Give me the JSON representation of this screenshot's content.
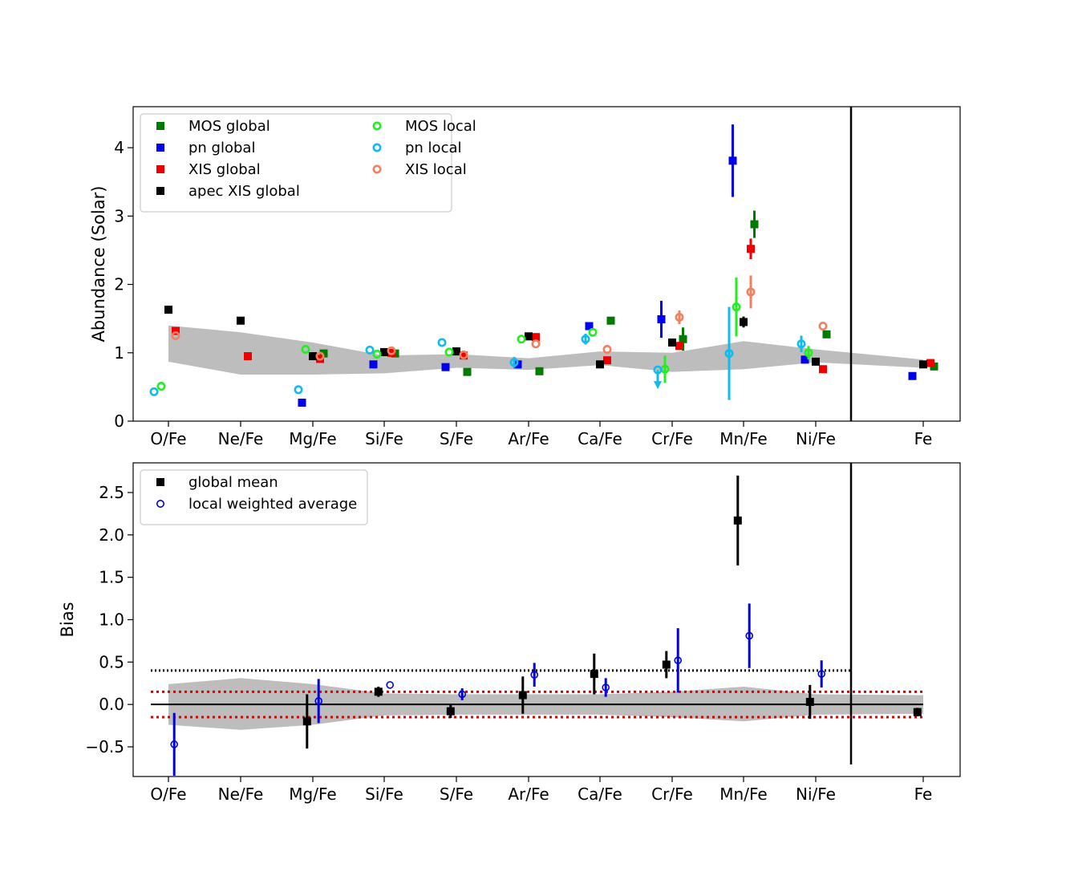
{
  "chart_data": [
    {
      "type": "scatter",
      "ylabel": "Abundance (Solar)",
      "ylim": [
        0,
        4.6
      ],
      "yticks": [
        0,
        1,
        2,
        3,
        4
      ],
      "categories": [
        "O/Fe",
        "Ne/Fe",
        "Mg/Fe",
        "Si/Fe",
        "S/Fe",
        "Ar/Fe",
        "Ca/Fe",
        "Cr/Fe",
        "Mn/Fe",
        "Ni/Fe",
        "Fe"
      ],
      "band": {
        "x": [
          0,
          1,
          2,
          3,
          4,
          5,
          6,
          7,
          8,
          9,
          10,
          10.5
        ],
        "lower": [
          0.87,
          0.68,
          0.68,
          0.7,
          0.78,
          0.75,
          0.82,
          0.72,
          0.76,
          0.86,
          0.78,
          0.75
        ],
        "upper": [
          1.4,
          1.3,
          1.15,
          0.96,
          0.98,
          0.92,
          1.02,
          1.0,
          1.17,
          1.05,
          0.9,
          0.95
        ]
      },
      "separator_x": 9.5,
      "series": [
        {
          "name": "MOS global",
          "color": "#007a00",
          "marker": "square",
          "offset": 0.15,
          "values": [
            null,
            null,
            0.99,
            0.99,
            0.72,
            0.73,
            1.47,
            1.2,
            2.88,
            1.27,
            0.8
          ],
          "yerr": [
            0,
            0,
            0,
            0,
            0,
            0,
            0,
            0.17,
            0.2,
            0,
            0
          ]
        },
        {
          "name": "pn global",
          "color": "#0000ee",
          "marker": "square",
          "offset": -0.15,
          "values": [
            null,
            null,
            0.27,
            0.83,
            0.79,
            0.83,
            1.39,
            1.49,
            3.81,
            0.9,
            0.66
          ],
          "yerr": [
            0,
            0,
            0,
            0,
            0,
            0,
            0,
            0.27,
            0.53,
            0,
            0
          ]
        },
        {
          "name": "XIS global",
          "color": "#ee0000",
          "marker": "square",
          "offset": 0.1,
          "values": [
            1.32,
            0.95,
            0.91,
            1.0,
            0.96,
            1.23,
            0.89,
            1.1,
            2.52,
            0.76,
            0.85
          ],
          "yerr": [
            0,
            0,
            0,
            0,
            0,
            0,
            0,
            0.06,
            0.15,
            0,
            0
          ]
        },
        {
          "name": "apec XIS global",
          "color": "#000000",
          "marker": "square",
          "offset": 0.0,
          "values": [
            1.63,
            1.47,
            0.95,
            1.01,
            1.02,
            1.24,
            0.83,
            1.15,
            1.45,
            0.87,
            0.83
          ],
          "yerr": [
            0,
            0,
            0,
            0,
            0,
            0,
            0,
            0.05,
            0.08,
            0,
            0
          ]
        },
        {
          "name": "MOS local",
          "color": "#22ee22",
          "marker": "circle",
          "offset": -0.1,
          "values": [
            0.51,
            null,
            1.05,
            0.98,
            1.01,
            1.2,
            1.3,
            0.76,
            1.67,
            1.0,
            null
          ],
          "yerr": [
            0,
            0,
            0,
            0,
            0,
            0,
            0,
            0.2,
            0.43,
            0.1,
            0
          ]
        },
        {
          "name": "pn local",
          "color": "#11bbee",
          "marker": "circle",
          "offset": -0.2,
          "values": [
            0.43,
            null,
            0.46,
            1.04,
            1.15,
            0.86,
            1.2,
            0.75,
            0.99,
            1.13,
            null
          ],
          "yerr": [
            0,
            0,
            0,
            0,
            0,
            0.08,
            0.08,
            0,
            0.68,
            0.12,
            0
          ],
          "upper_limit": [
            false,
            false,
            false,
            false,
            false,
            false,
            false,
            true,
            false,
            false,
            false
          ]
        },
        {
          "name": "XIS local",
          "color": "#f08060",
          "marker": "circle",
          "offset": 0.1,
          "values": [
            1.25,
            null,
            0.95,
            1.03,
            0.97,
            1.13,
            1.05,
            1.52,
            1.89,
            1.39,
            null
          ],
          "yerr": [
            0,
            0,
            0,
            0,
            0,
            0,
            0,
            0.1,
            0.24,
            0,
            0
          ]
        }
      ]
    },
    {
      "type": "scatter",
      "ylabel": "Bias",
      "ylim": [
        -0.85,
        2.85
      ],
      "yticks": [
        -0.5,
        0.0,
        0.5,
        1.0,
        1.5,
        2.0,
        2.5
      ],
      "categories": [
        "O/Fe",
        "Ne/Fe",
        "Mg/Fe",
        "Si/Fe",
        "S/Fe",
        "Ar/Fe",
        "Ca/Fe",
        "Cr/Fe",
        "Mn/Fe",
        "Ni/Fe",
        "Fe"
      ],
      "band": {
        "x": [
          0,
          1,
          2,
          3,
          4,
          5,
          6,
          7,
          8,
          9,
          10,
          10.5
        ],
        "lower": [
          -0.24,
          -0.3,
          -0.24,
          -0.13,
          -0.12,
          -0.12,
          -0.12,
          -0.15,
          -0.2,
          -0.12,
          -0.11,
          -0.11
        ],
        "upper": [
          0.24,
          0.31,
          0.24,
          0.13,
          0.12,
          0.12,
          0.12,
          0.15,
          0.21,
          0.12,
          0.11,
          0.11
        ]
      },
      "hlines": [
        {
          "y": 0.0,
          "style": "solid",
          "color": "#000000",
          "xmax": 10.5
        },
        {
          "y": 0.4,
          "style": "dotted",
          "color": "#000000",
          "xmax": 9.5
        },
        {
          "y": 0.15,
          "style": "dotted",
          "color": "#dd0000",
          "xmax": 10.5
        },
        {
          "y": -0.15,
          "style": "dotted",
          "color": "#dd0000",
          "xmax": 10.5
        }
      ],
      "separator_x": 9.5,
      "series": [
        {
          "name": "global mean",
          "color": "#000000",
          "marker": "square",
          "offset": -0.08,
          "values": [
            null,
            null,
            -0.2,
            0.15,
            -0.08,
            0.11,
            0.36,
            0.47,
            2.17,
            0.03,
            -0.09
          ],
          "yerr": [
            0,
            0,
            0.32,
            0.06,
            0.08,
            0.22,
            0.24,
            0.16,
            0.53,
            0.2,
            0.05
          ]
        },
        {
          "name": "local weighted average",
          "color": "#0000dd",
          "marker": "circle",
          "offset": 0.08,
          "values": [
            -0.47,
            null,
            0.04,
            0.23,
            0.12,
            0.35,
            0.2,
            0.52,
            0.81,
            0.36,
            null
          ],
          "yerr": [
            0.37,
            0,
            0.26,
            0,
            0.07,
            0.14,
            0.11,
            0.38,
            0.38,
            0.16,
            0
          ]
        }
      ]
    }
  ]
}
